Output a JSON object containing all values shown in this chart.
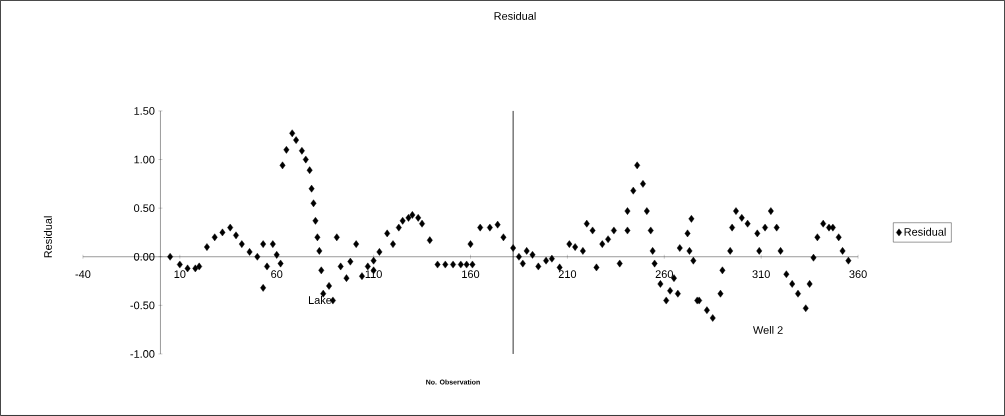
{
  "chart_data": {
    "type": "scatter",
    "title": "Residual",
    "xlabel": "No. Observation",
    "ylabel": "Residual",
    "xlim": [
      -40,
      360
    ],
    "xticks": [
      -40,
      10,
      60,
      110,
      160,
      210,
      260,
      310,
      360
    ],
    "ylim": [
      -1,
      1.5
    ],
    "yticks": [
      {
        "value": -1,
        "label": "-1.00"
      },
      {
        "value": -0.5,
        "label": "-0.50"
      },
      {
        "value": 0,
        "label": "0.00"
      },
      {
        "value": 0.5,
        "label": "0.50"
      },
      {
        "value": 1,
        "label": "1.00"
      },
      {
        "value": 1.5,
        "label": "1.50"
      }
    ],
    "marker": "diamond",
    "legend": "right",
    "ref_lines": [
      {
        "axis": "x",
        "value": 182
      }
    ],
    "annotations": [
      "Lake",
      "Well 2"
    ],
    "series": [
      {
        "name": "Residual",
        "color": "#000000",
        "x": [
          5,
          10,
          14,
          18,
          20,
          24,
          28,
          32,
          36,
          39,
          42,
          46,
          50,
          53,
          53,
          55,
          58,
          60,
          62,
          63,
          65,
          68,
          70,
          73,
          75,
          77,
          78,
          79,
          80,
          81,
          82,
          83,
          84,
          87,
          89,
          91,
          93,
          96,
          98,
          101,
          104,
          107,
          110,
          110,
          113,
          117,
          120,
          123,
          125,
          128,
          130,
          133,
          135,
          139,
          143,
          147,
          151,
          155,
          158,
          161,
          160,
          165,
          170,
          174,
          177,
          182,
          185,
          187,
          189,
          192,
          195,
          199,
          202,
          206,
          211,
          214,
          218,
          220,
          223,
          225,
          228,
          231,
          234,
          237,
          241,
          241,
          244,
          246,
          249,
          251,
          253,
          254,
          255,
          258,
          261,
          263,
          265,
          267,
          268,
          272,
          273,
          274,
          275,
          277,
          278,
          282,
          285,
          289,
          290,
          294,
          295,
          297,
          300,
          303,
          308,
          309,
          312,
          315,
          318,
          320,
          323,
          326,
          329,
          333,
          335,
          337,
          339,
          342,
          345,
          347,
          350,
          352,
          355
        ],
        "values": [
          0,
          -0.08,
          -0.12,
          -0.12,
          -0.1,
          0.1,
          0.2,
          0.25,
          0.3,
          0.22,
          0.13,
          0.05,
          0,
          0.13,
          -0.32,
          -0.1,
          0.13,
          0.02,
          -0.07,
          0.94,
          1.1,
          1.27,
          1.2,
          1.09,
          1.0,
          0.89,
          0.7,
          0.55,
          0.37,
          0.2,
          0.06,
          -0.14,
          -0.38,
          -0.3,
          -0.45,
          0.2,
          -0.1,
          -0.22,
          -0.05,
          0.13,
          -0.2,
          -0.1,
          -0.04,
          -0.14,
          0.05,
          0.24,
          0.13,
          0.3,
          0.37,
          0.4,
          0.43,
          0.4,
          0.34,
          0.17,
          -0.08,
          -0.08,
          -0.08,
          -0.08,
          -0.08,
          -0.08,
          0.13,
          0.3,
          0.3,
          0.33,
          0.2,
          0.09,
          0.0,
          -0.07,
          0.06,
          0.02,
          -0.1,
          -0.04,
          -0.02,
          -0.11,
          0.13,
          0.1,
          0.06,
          0.34,
          0.27,
          -0.11,
          0.13,
          0.18,
          0.27,
          -0.07,
          0.27,
          0.47,
          0.68,
          0.94,
          0.75,
          0.47,
          0.27,
          0.06,
          -0.07,
          -0.28,
          -0.45,
          -0.35,
          -0.22,
          -0.38,
          0.09,
          0.24,
          0.06,
          0.39,
          -0.04,
          -0.45,
          -0.45,
          -0.55,
          -0.63,
          -0.38,
          -0.14,
          0.06,
          0.3,
          0.47,
          0.4,
          0.34,
          0.24,
          0.06,
          0.3,
          0.47,
          0.3,
          0.06,
          -0.18,
          -0.28,
          -0.38,
          -0.53,
          -0.28,
          -0.01,
          0.2,
          0.34,
          0.3,
          0.3,
          0.2,
          0.06,
          -0.04
        ]
      }
    ]
  }
}
